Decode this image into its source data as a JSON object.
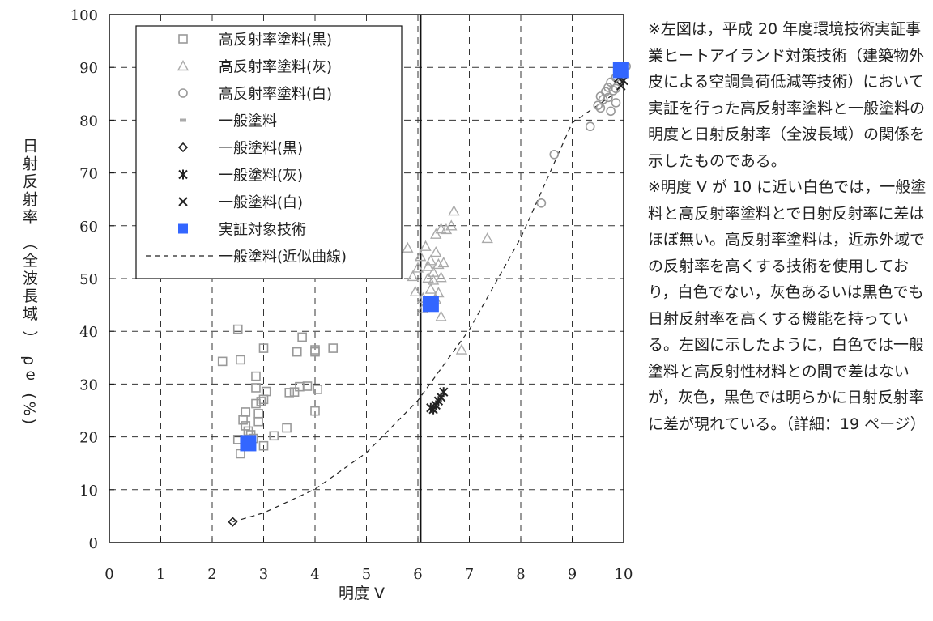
{
  "chart_data": {
    "type": "scatter",
    "xlabel": "明度 V",
    "ylabel": "日射反射率 （全波長域 ） ρｅ (%)",
    "xlim": [
      0,
      10
    ],
    "ylim": [
      0,
      100
    ],
    "xticks": [
      0,
      1,
      2,
      3,
      4,
      5,
      6,
      7,
      8,
      9,
      10
    ],
    "yticks": [
      0,
      10,
      20,
      30,
      40,
      50,
      60,
      70,
      80,
      90,
      100
    ],
    "grid": true,
    "legend_position": "top-left",
    "reference_line_x": 6.05,
    "series": [
      {
        "name": "高反射率塗料(黒)",
        "marker": "square",
        "color": "#999999",
        "points": [
          [
            2.2,
            34.3
          ],
          [
            2.5,
            40.4
          ],
          [
            2.55,
            34.6
          ],
          [
            2.5,
            19.5
          ],
          [
            2.55,
            16.8
          ],
          [
            2.6,
            23.2
          ],
          [
            2.65,
            24.7
          ],
          [
            2.65,
            22.1
          ],
          [
            2.7,
            21.1
          ],
          [
            2.75,
            20.4
          ],
          [
            2.8,
            19.7
          ],
          [
            2.85,
            31.5
          ],
          [
            2.85,
            29.3
          ],
          [
            2.85,
            26.3
          ],
          [
            2.9,
            24.4
          ],
          [
            2.9,
            22.9
          ],
          [
            2.95,
            26.7
          ],
          [
            3.0,
            27.1
          ],
          [
            3.0,
            18.3
          ],
          [
            3.0,
            36.8
          ],
          [
            3.05,
            28.6
          ],
          [
            3.2,
            20.2
          ],
          [
            3.45,
            21.7
          ],
          [
            3.5,
            28.4
          ],
          [
            3.6,
            28.5
          ],
          [
            3.65,
            36.1
          ],
          [
            3.7,
            29.5
          ],
          [
            3.75,
            38.9
          ],
          [
            3.85,
            29.6
          ],
          [
            4.0,
            36.1
          ],
          [
            4.0,
            36.5
          ],
          [
            4.0,
            24.9
          ],
          [
            4.05,
            29.0
          ],
          [
            4.35,
            36.8
          ]
        ]
      },
      {
        "name": "高反射率塗料(灰)",
        "marker": "triangle",
        "color": "#aaaaaa",
        "points": [
          [
            5.8,
            55.8
          ],
          [
            5.9,
            50.4
          ],
          [
            5.95,
            47.5
          ],
          [
            6.0,
            52.0
          ],
          [
            6.05,
            54.2
          ],
          [
            6.1,
            46.3
          ],
          [
            6.1,
            44.3
          ],
          [
            6.15,
            56.1
          ],
          [
            6.2,
            52.3
          ],
          [
            6.2,
            50.1
          ],
          [
            6.25,
            48.0
          ],
          [
            6.25,
            53.4
          ],
          [
            6.3,
            51.2
          ],
          [
            6.3,
            49.7
          ],
          [
            6.35,
            46.0
          ],
          [
            6.35,
            55.0
          ],
          [
            6.35,
            58.4
          ],
          [
            6.4,
            52.7
          ],
          [
            6.4,
            47.3
          ],
          [
            6.45,
            50.2
          ],
          [
            6.45,
            42.8
          ],
          [
            6.45,
            59.4
          ],
          [
            6.5,
            53.0
          ],
          [
            6.55,
            59.3
          ],
          [
            6.65,
            60.0
          ],
          [
            6.7,
            62.8
          ],
          [
            6.85,
            36.5
          ],
          [
            7.35,
            57.6
          ]
        ]
      },
      {
        "name": "高反射率塗料(白)",
        "marker": "circle",
        "color": "#999999",
        "points": [
          [
            8.4,
            64.3
          ],
          [
            8.65,
            73.5
          ],
          [
            9.35,
            78.8
          ],
          [
            9.5,
            82.8
          ],
          [
            9.55,
            84.5
          ],
          [
            9.55,
            82.3
          ],
          [
            9.6,
            83.9
          ],
          [
            9.65,
            85.4
          ],
          [
            9.7,
            86.2
          ],
          [
            9.7,
            84.3
          ],
          [
            9.75,
            87.2
          ],
          [
            9.75,
            81.7
          ],
          [
            9.8,
            85.6
          ],
          [
            9.85,
            88.1
          ],
          [
            9.85,
            86.0
          ],
          [
            9.85,
            83.3
          ],
          [
            9.9,
            89.1
          ],
          [
            9.95,
            88.5
          ],
          [
            10.0,
            90.0
          ],
          [
            10.05,
            90.2
          ]
        ]
      },
      {
        "name": "一般塗料",
        "marker": "dash",
        "color": "#aaaaaa",
        "points": []
      },
      {
        "name": "一般塗料(黒)",
        "marker": "diamond",
        "color": "#222222",
        "points": [
          [
            2.4,
            3.9
          ]
        ]
      },
      {
        "name": "一般塗料(灰)",
        "marker": "asterisk",
        "color": "#222222",
        "points": [
          [
            6.25,
            25.5
          ],
          [
            6.3,
            25.2
          ],
          [
            6.35,
            26.0
          ],
          [
            6.4,
            26.8
          ],
          [
            6.45,
            27.5
          ],
          [
            6.5,
            28.5
          ]
        ]
      },
      {
        "name": "一般塗料(白)",
        "marker": "x",
        "color": "#222222",
        "points": [
          [
            9.95,
            86.5
          ],
          [
            10.0,
            87.5
          ],
          [
            9.9,
            88.0
          ]
        ]
      },
      {
        "name": "実証対象技術",
        "marker": "filled-square",
        "color": "#3366ff",
        "points": [
          [
            2.7,
            18.8
          ],
          [
            6.25,
            45.2
          ],
          [
            9.95,
            89.5
          ]
        ]
      },
      {
        "name": "一般塗料(近似曲線)",
        "marker": "dashed-line",
        "color": "#222222",
        "curve": [
          [
            2.4,
            3.9
          ],
          [
            3,
            5.6
          ],
          [
            4,
            10.1
          ],
          [
            5,
            17.0
          ],
          [
            6,
            26.9
          ],
          [
            7,
            40.3
          ],
          [
            8,
            57.7
          ],
          [
            9,
            79.5
          ],
          [
            10,
            86.2
          ]
        ]
      }
    ]
  },
  "notes": {
    "line1": "※左図は，平成 20 年度環境技術実証事業ヒートアイランド対策技術（建築物外皮による空調負荷低減等技術）において実証を行った高反射率塗料と一般塗料の明度と日射反射率（全波長域）の関係を示したものである。",
    "line2": "※明度 V が 10 に近い白色では，一般塗料と高反射率塗料とで日射反射率に差はほぼ無い。高反射率塗料は，近赤外域での反射率を高くする技術を使用しており，白色でない，灰色あるいは黒色でも日射反射率を高くする機能を持っている。左図に示したように，白色では一般塗料と高反射性材料との間で差はないが，灰色，黒色では明らかに日射反射率に差が現れている。（詳細：19 ページ）"
  }
}
